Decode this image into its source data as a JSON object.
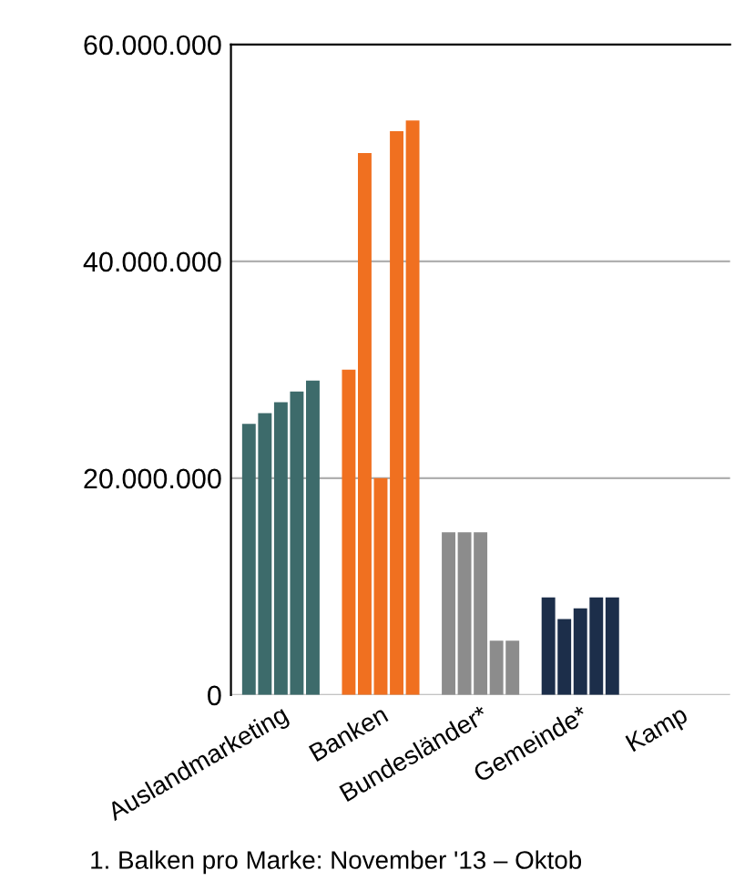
{
  "chart_data": {
    "type": "bar",
    "categories": [
      "Auslandmarketing",
      "Banken",
      "Bundesländer*",
      "Gemeinde*",
      "Kamp"
    ],
    "series": [
      {
        "colors": [
          "#3d6b6b",
          "#f07020",
          "#8c8c8c",
          "#1c2e4a",
          "#1c2e4a"
        ],
        "values": [
          25000000,
          30000000,
          15000000,
          9000000,
          null
        ]
      },
      {
        "colors": [
          "#3d6b6b",
          "#f07020",
          "#8c8c8c",
          "#1c2e4a",
          "#1c2e4a"
        ],
        "values": [
          26000000,
          50000000,
          15000000,
          7000000,
          null
        ]
      },
      {
        "colors": [
          "#3d6b6b",
          "#f07020",
          "#8c8c8c",
          "#1c2e4a",
          "#1c2e4a"
        ],
        "values": [
          27000000,
          20000000,
          15000000,
          8000000,
          null
        ]
      },
      {
        "colors": [
          "#3d6b6b",
          "#f07020",
          "#8c8c8c",
          "#1c2e4a",
          "#1c2e4a"
        ],
        "values": [
          28000000,
          52000000,
          5000000,
          9000000,
          null
        ]
      },
      {
        "colors": [
          "#3d6b6b",
          "#f07020",
          "#8c8c8c",
          "#1c2e4a",
          "#1c2e4a"
        ],
        "values": [
          29000000,
          53000000,
          5000000,
          9000000,
          null
        ]
      }
    ],
    "ylim": [
      0,
      60000000
    ],
    "yticks": [
      {
        "value": 0,
        "label": "0"
      },
      {
        "value": 20000000,
        "label": "20.000.000"
      },
      {
        "value": 40000000,
        "label": "40.000.000"
      },
      {
        "value": 60000000,
        "label": "60.000.000"
      }
    ],
    "grid": "y",
    "annotations": [
      "1. Balken pro Marke: November '13 – Oktob"
    ]
  }
}
